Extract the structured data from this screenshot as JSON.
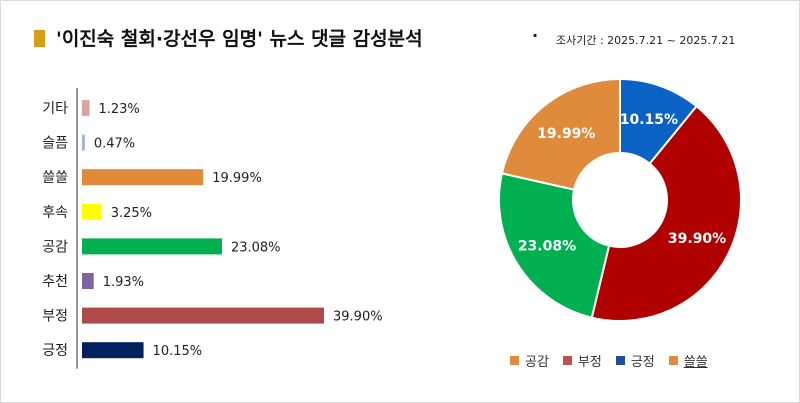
{
  "header": {
    "title": "'이진숙 철회·강선우 임명' 뉴스 댓글 감성분석",
    "dot": "·",
    "period": "조사기간 : 2025.7.21 ~ 2025.7.21"
  },
  "colors": {
    "title_mark": "#d4a017",
    "axis": "#333333"
  },
  "chart_data": [
    {
      "type": "bar",
      "orientation": "horizontal",
      "categories": [
        "기타",
        "슬픔",
        "쓸쓸",
        "후속",
        "공감",
        "추천",
        "부정",
        "긍정"
      ],
      "values": [
        1.23,
        0.47,
        19.99,
        3.25,
        23.08,
        1.93,
        39.9,
        10.15
      ],
      "value_labels": [
        "1.23%",
        "0.47%",
        "19.99%",
        "3.25%",
        "23.08%",
        "1.93%",
        "39.90%",
        "10.15%"
      ],
      "colors": [
        "#d9a3a3",
        "#9fb3d9",
        "#e08a3c",
        "#ffff00",
        "#00b050",
        "#8064a2",
        "#b04a4a",
        "#002060"
      ],
      "unit": "%",
      "xlim": [
        0,
        45
      ],
      "grid": false
    },
    {
      "type": "pie",
      "variant": "donut",
      "start_angle_deg": 0,
      "slices": [
        {
          "label": "긍정",
          "value": 10.15,
          "text": "10.15%",
          "color": "#0a62c4"
        },
        {
          "label": "부정",
          "value": 39.9,
          "text": "39.90%",
          "color": "#b00000"
        },
        {
          "label": "공감",
          "value": 23.08,
          "text": "23.08%",
          "color": "#00b050"
        },
        {
          "label": "쓸쓸",
          "value": 19.99,
          "text": "19.99%",
          "color": "#e08a3c"
        }
      ],
      "legend": {
        "placement": "bottom",
        "items": [
          {
            "label": "공감",
            "color": "#e08a3c"
          },
          {
            "label": "부정",
            "color": "#c0504d"
          },
          {
            "label": "긍정",
            "color": "#1f4e9a"
          },
          {
            "label": "쓸쓸",
            "color": "#e08a3c",
            "underlined": true
          }
        ]
      }
    }
  ]
}
